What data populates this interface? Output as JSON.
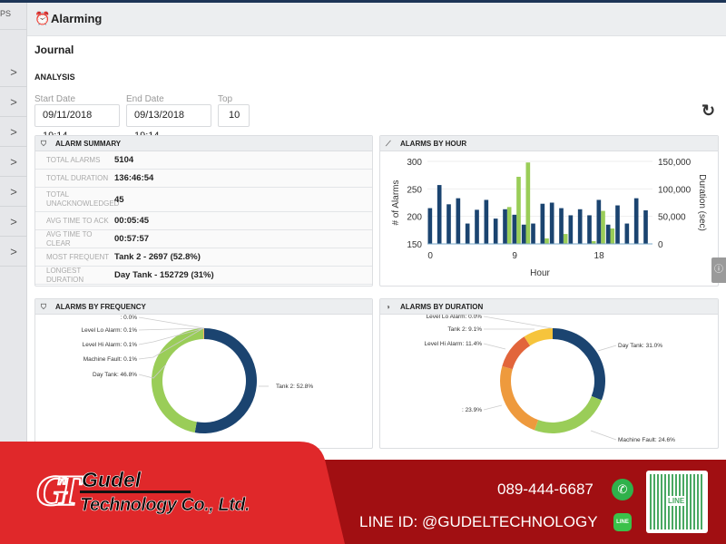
{
  "sidebar": {
    "top_label": "PS",
    "items": [
      ">",
      ">",
      ">",
      ">",
      ">",
      ">",
      ">"
    ]
  },
  "header": {
    "title": "Alarming",
    "icon": "alarm-clock-icon"
  },
  "page": {
    "subtitle": "Journal",
    "section": "ANALYSIS"
  },
  "filters": {
    "start_label": "Start Date",
    "start_value": "09/11/2018 19:14",
    "end_label": "End Date",
    "end_value": "09/13/2018 19:14",
    "top_label": "Top",
    "top_value": "10",
    "refresh_icon": "refresh-icon"
  },
  "summary": {
    "title": "ALARM SUMMARY",
    "rows": [
      {
        "k": "TOTAL ALARMS",
        "v": "5104"
      },
      {
        "k": "TOTAL DURATION",
        "v": "136:46:54"
      },
      {
        "k": "TOTAL UNACKNOWLEDGED",
        "v": "45"
      },
      {
        "k": "AVG TIME TO ACK",
        "v": "00:05:45"
      },
      {
        "k": "AVG TIME TO CLEAR",
        "v": "00:57:57"
      },
      {
        "k": "MOST FREQUENT",
        "v": "Tank 2 - 2697 (52.8%)"
      },
      {
        "k": "LONGEST DURATION",
        "v": "Day Tank - 152729 (31%)"
      }
    ]
  },
  "colors": {
    "navy": "#1b4470",
    "green": "#9acd58",
    "orange": "#ee9a3d",
    "redorange": "#e2653b",
    "yellow": "#f6c43c"
  },
  "chart_data": [
    {
      "type": "bar",
      "title": "ALARMS BY HOUR",
      "xlabel": "Hour",
      "ylabel": "# of Alarms",
      "y2label": "Duration (sec)",
      "x_ticks": [
        "0",
        "9",
        "18"
      ],
      "ylim": [
        150,
        300
      ],
      "y_ticks": [
        "150",
        "200",
        "250",
        "300"
      ],
      "y2lim": [
        0,
        150000
      ],
      "y2_ticks": [
        "0",
        "50,000",
        "100,000",
        "150,000"
      ],
      "categories": [
        0,
        1,
        2,
        3,
        4,
        5,
        6,
        7,
        8,
        9,
        10,
        11,
        12,
        13,
        14,
        15,
        16,
        17,
        18,
        19,
        20,
        21,
        22,
        23
      ],
      "series": [
        {
          "axis": "left",
          "color": "#1b4470",
          "values": [
            215,
            257,
            222,
            233,
            187,
            212,
            230,
            196,
            213,
            203,
            185,
            187,
            223,
            225,
            215,
            202,
            213,
            202,
            230,
            185,
            220,
            187,
            233,
            211
          ]
        },
        {
          "axis": "right",
          "color": "#9acd58",
          "values": [
            0,
            0,
            0,
            0,
            0,
            0,
            0,
            0,
            67000,
            122000,
            148000,
            0,
            10000,
            0,
            18000,
            0,
            0,
            5000,
            60000,
            28000,
            0,
            0,
            0,
            0
          ]
        }
      ]
    },
    {
      "type": "pie",
      "title": "ALARMS BY FREQUENCY",
      "donut": true,
      "slices": [
        {
          "label": "Tank 2: 52.8%",
          "value": 52.8,
          "color": "#1b4470"
        },
        {
          "label": "Day Tank: 46.8%",
          "value": 46.8,
          "color": "#9acd58"
        },
        {
          "label": "Machine Fault: 0.1%",
          "value": 0.1,
          "color": "#ee9a3d"
        },
        {
          "label": "Level Hi Alarm: 0.1%",
          "value": 0.1,
          "color": "#e2653b"
        },
        {
          "label": "Level Lo Alarm: 0.1%",
          "value": 0.1,
          "color": "#f6c43c"
        },
        {
          "label": ": 0.0%",
          "value": 0.0,
          "color": "#888"
        }
      ]
    },
    {
      "type": "pie",
      "title": "ALARMS BY DURATION",
      "donut": true,
      "slices": [
        {
          "label": "Day Tank: 31.0%",
          "value": 31.0,
          "color": "#1b4470"
        },
        {
          "label": "Machine Fault: 24.6%",
          "value": 24.6,
          "color": "#9acd58"
        },
        {
          "label": ": 23.9%",
          "value": 23.9,
          "color": "#ee9a3d"
        },
        {
          "label": "Level Hi Alarm: 11.4%",
          "value": 11.4,
          "color": "#e2653b"
        },
        {
          "label": "Tank 2: 9.1%",
          "value": 9.1,
          "color": "#f6c43c"
        },
        {
          "label": "Level Lo Alarm: 0.0%",
          "value": 0.0,
          "color": "#888"
        }
      ]
    }
  ],
  "banner": {
    "company_line1": "Gudel",
    "company_line2": "Technology Co., Ltd.",
    "logo_letters": "GT",
    "phone": "089-444-6687",
    "line_id": "LINE ID: @GUDELTECHNOLOGY",
    "qr_label": "LINE"
  }
}
